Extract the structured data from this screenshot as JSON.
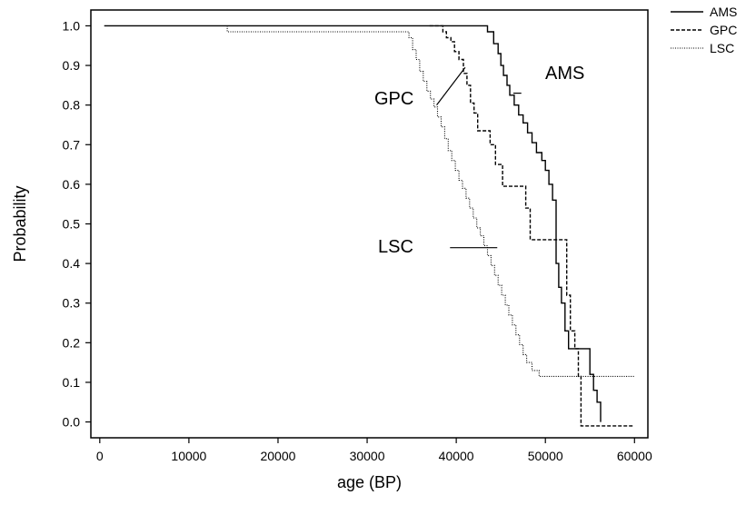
{
  "chart_data": {
    "type": "line",
    "xlabel": "age (BP)",
    "ylabel": "Probability",
    "xlim": [
      -1000,
      61500
    ],
    "ylim": [
      -0.04,
      1.04
    ],
    "x_ticks": [
      0,
      10000,
      20000,
      30000,
      40000,
      50000,
      60000
    ],
    "x_tick_labels": [
      "0",
      "10000",
      "20000",
      "30000",
      "40000",
      "50000",
      "60000"
    ],
    "y_ticks": [
      0.0,
      0.1,
      0.2,
      0.3,
      0.4,
      0.5,
      0.6,
      0.7,
      0.8,
      0.9,
      1.0
    ],
    "y_tick_labels": [
      "0.0",
      "0.1",
      "0.2",
      "0.3",
      "0.4",
      "0.5",
      "0.6",
      "0.7",
      "0.8",
      "0.9",
      "1.0"
    ],
    "grid": false,
    "legend_position": "outside-top-right",
    "series": [
      {
        "name": "AMS",
        "style": "solid",
        "points": [
          [
            500,
            1.0
          ],
          [
            43500,
            1.0
          ],
          [
            43500,
            0.985
          ],
          [
            44200,
            0.985
          ],
          [
            44200,
            0.955
          ],
          [
            44700,
            0.955
          ],
          [
            44700,
            0.93
          ],
          [
            45000,
            0.93
          ],
          [
            45000,
            0.9
          ],
          [
            45300,
            0.9
          ],
          [
            45300,
            0.875
          ],
          [
            45700,
            0.875
          ],
          [
            45700,
            0.85
          ],
          [
            46000,
            0.85
          ],
          [
            46000,
            0.825
          ],
          [
            46500,
            0.825
          ],
          [
            46500,
            0.8
          ],
          [
            47000,
            0.8
          ],
          [
            47000,
            0.775
          ],
          [
            47500,
            0.775
          ],
          [
            47500,
            0.755
          ],
          [
            48000,
            0.755
          ],
          [
            48000,
            0.73
          ],
          [
            48500,
            0.73
          ],
          [
            48500,
            0.705
          ],
          [
            49000,
            0.705
          ],
          [
            49000,
            0.68
          ],
          [
            49600,
            0.68
          ],
          [
            49600,
            0.66
          ],
          [
            50000,
            0.66
          ],
          [
            50000,
            0.635
          ],
          [
            50400,
            0.635
          ],
          [
            50400,
            0.6
          ],
          [
            50800,
            0.6
          ],
          [
            50800,
            0.56
          ],
          [
            51200,
            0.56
          ],
          [
            51200,
            0.4
          ],
          [
            51500,
            0.4
          ],
          [
            51500,
            0.34
          ],
          [
            51800,
            0.34
          ],
          [
            51800,
            0.3
          ],
          [
            52200,
            0.3
          ],
          [
            52200,
            0.23
          ],
          [
            52600,
            0.23
          ],
          [
            52600,
            0.185
          ],
          [
            55000,
            0.185
          ],
          [
            55000,
            0.12
          ],
          [
            55400,
            0.12
          ],
          [
            55400,
            0.08
          ],
          [
            55800,
            0.08
          ],
          [
            55800,
            0.05
          ],
          [
            56200,
            0.05
          ],
          [
            56200,
            0.0
          ]
        ]
      },
      {
        "name": "GPC",
        "style": "dashed",
        "points": [
          [
            37000,
            1.0
          ],
          [
            38500,
            1.0
          ],
          [
            38500,
            0.985
          ],
          [
            38900,
            0.985
          ],
          [
            38900,
            0.97
          ],
          [
            39400,
            0.97
          ],
          [
            39400,
            0.96
          ],
          [
            39800,
            0.96
          ],
          [
            39800,
            0.935
          ],
          [
            40300,
            0.935
          ],
          [
            40300,
            0.915
          ],
          [
            40800,
            0.915
          ],
          [
            40800,
            0.88
          ],
          [
            41200,
            0.88
          ],
          [
            41200,
            0.85
          ],
          [
            41600,
            0.85
          ],
          [
            41600,
            0.805
          ],
          [
            42000,
            0.805
          ],
          [
            42000,
            0.78
          ],
          [
            42400,
            0.78
          ],
          [
            42400,
            0.735
          ],
          [
            43800,
            0.735
          ],
          [
            43800,
            0.7
          ],
          [
            44400,
            0.7
          ],
          [
            44400,
            0.65
          ],
          [
            45200,
            0.65
          ],
          [
            45200,
            0.595
          ],
          [
            47800,
            0.595
          ],
          [
            47800,
            0.54
          ],
          [
            48300,
            0.54
          ],
          [
            48300,
            0.46
          ],
          [
            52400,
            0.46
          ],
          [
            52400,
            0.32
          ],
          [
            52800,
            0.32
          ],
          [
            52800,
            0.23
          ],
          [
            53300,
            0.23
          ],
          [
            53300,
            0.185
          ],
          [
            53700,
            0.185
          ],
          [
            53700,
            0.115
          ],
          [
            54000,
            0.115
          ],
          [
            54000,
            -0.01
          ],
          [
            59800,
            -0.01
          ]
        ]
      },
      {
        "name": "LSC",
        "style": "dotted",
        "points": [
          [
            14300,
            1.0
          ],
          [
            14300,
            0.985
          ],
          [
            34700,
            0.985
          ],
          [
            34700,
            0.97
          ],
          [
            35100,
            0.97
          ],
          [
            35100,
            0.94
          ],
          [
            35500,
            0.94
          ],
          [
            35500,
            0.915
          ],
          [
            35900,
            0.915
          ],
          [
            35900,
            0.885
          ],
          [
            36300,
            0.885
          ],
          [
            36300,
            0.86
          ],
          [
            36700,
            0.86
          ],
          [
            36700,
            0.835
          ],
          [
            37100,
            0.835
          ],
          [
            37100,
            0.815
          ],
          [
            37500,
            0.815
          ],
          [
            37500,
            0.795
          ],
          [
            37900,
            0.795
          ],
          [
            37900,
            0.77
          ],
          [
            38300,
            0.77
          ],
          [
            38300,
            0.745
          ],
          [
            38700,
            0.745
          ],
          [
            38700,
            0.715
          ],
          [
            39100,
            0.715
          ],
          [
            39100,
            0.685
          ],
          [
            39500,
            0.685
          ],
          [
            39500,
            0.66
          ],
          [
            39900,
            0.66
          ],
          [
            39900,
            0.635
          ],
          [
            40300,
            0.635
          ],
          [
            40300,
            0.61
          ],
          [
            40700,
            0.61
          ],
          [
            40700,
            0.59
          ],
          [
            41100,
            0.59
          ],
          [
            41100,
            0.565
          ],
          [
            41500,
            0.565
          ],
          [
            41500,
            0.54
          ],
          [
            41900,
            0.54
          ],
          [
            41900,
            0.515
          ],
          [
            42300,
            0.515
          ],
          [
            42300,
            0.49
          ],
          [
            42700,
            0.49
          ],
          [
            42700,
            0.47
          ],
          [
            43100,
            0.47
          ],
          [
            43100,
            0.445
          ],
          [
            43500,
            0.445
          ],
          [
            43500,
            0.42
          ],
          [
            43900,
            0.42
          ],
          [
            43900,
            0.395
          ],
          [
            44300,
            0.395
          ],
          [
            44300,
            0.37
          ],
          [
            44700,
            0.37
          ],
          [
            44700,
            0.345
          ],
          [
            45100,
            0.345
          ],
          [
            45100,
            0.32
          ],
          [
            45500,
            0.32
          ],
          [
            45500,
            0.295
          ],
          [
            45900,
            0.295
          ],
          [
            45900,
            0.27
          ],
          [
            46300,
            0.27
          ],
          [
            46300,
            0.245
          ],
          [
            46700,
            0.245
          ],
          [
            46700,
            0.22
          ],
          [
            47100,
            0.22
          ],
          [
            47100,
            0.195
          ],
          [
            47500,
            0.195
          ],
          [
            47500,
            0.17
          ],
          [
            47900,
            0.17
          ],
          [
            47900,
            0.15
          ],
          [
            48500,
            0.15
          ],
          [
            48500,
            0.13
          ],
          [
            49300,
            0.13
          ],
          [
            49300,
            0.115
          ],
          [
            60000,
            0.115
          ]
        ]
      }
    ],
    "annotations": [
      {
        "text": "GPC",
        "leader": [
          [
            41000,
            0.895
          ],
          [
            37800,
            0.8
          ]
        ]
      },
      {
        "text": "AMS",
        "leader": [
          [
            46400,
            0.83
          ],
          [
            47300,
            0.83
          ]
        ]
      },
      {
        "text": "LSC",
        "leader": [
          [
            39300,
            0.44
          ],
          [
            44600,
            0.44
          ]
        ]
      }
    ]
  }
}
